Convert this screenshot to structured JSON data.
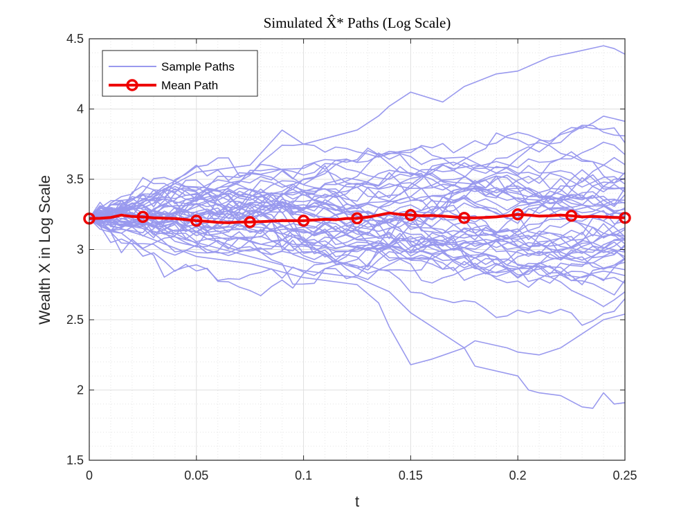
{
  "chart_data": {
    "type": "line",
    "title": "Simulated X̂* Paths (Log Scale)",
    "xlabel": "t",
    "ylabel": "Wealth X in Log Scale",
    "xlim": [
      0,
      0.25
    ],
    "ylim": [
      1.5,
      4.5
    ],
    "xticks": [
      0,
      0.05,
      0.1,
      0.15,
      0.2,
      0.25
    ],
    "xtick_labels": [
      "0",
      "0.05",
      "0.1",
      "0.15",
      "0.2",
      "0.25"
    ],
    "yticks": [
      1.5,
      2,
      2.5,
      3,
      3.5,
      4,
      4.5
    ],
    "ytick_labels": [
      "1.5",
      "2",
      "2.5",
      "3",
      "3.5",
      "4",
      "4.5"
    ],
    "grid": true,
    "minor_grid": true,
    "legend": {
      "position": "top-left",
      "entries": [
        {
          "label": "Sample Paths",
          "color": "#9999ee",
          "marker": "none"
        },
        {
          "label": "Mean Path",
          "color": "#ee0000",
          "marker": "circle"
        }
      ]
    },
    "colors": {
      "sample": "#9999ee",
      "mean": "#ee0000",
      "axes": "#262626",
      "grid": "#dfdfdf"
    },
    "x": [
      0,
      0.005,
      0.01,
      0.015,
      0.02,
      0.025,
      0.03,
      0.035,
      0.04,
      0.045,
      0.05,
      0.055,
      0.06,
      0.065,
      0.07,
      0.075,
      0.08,
      0.085,
      0.09,
      0.095,
      0.1,
      0.105,
      0.11,
      0.115,
      0.12,
      0.125,
      0.13,
      0.135,
      0.14,
      0.145,
      0.15,
      0.155,
      0.16,
      0.165,
      0.17,
      0.175,
      0.18,
      0.185,
      0.19,
      0.195,
      0.2,
      0.205,
      0.21,
      0.215,
      0.22,
      0.225,
      0.23,
      0.235,
      0.24,
      0.245,
      0.25
    ],
    "sample_path_count": 50,
    "sample_path_seed": 7,
    "sample_path_sigma": 0.045,
    "start_value": 3.22,
    "highlighted_paths": [
      {
        "name": "upper-path",
        "x": [
          0,
          0.025,
          0.05,
          0.075,
          0.09,
          0.1,
          0.125,
          0.135,
          0.14,
          0.15,
          0.165,
          0.175,
          0.19,
          0.2,
          0.215,
          0.225,
          0.24,
          0.245,
          0.25
        ],
        "values": [
          3.22,
          3.35,
          3.55,
          3.6,
          3.85,
          3.75,
          3.85,
          3.95,
          4.02,
          4.12,
          4.05,
          4.16,
          4.25,
          4.27,
          4.37,
          4.4,
          4.45,
          4.43,
          4.39
        ]
      },
      {
        "name": "lower-path",
        "x": [
          0,
          0.025,
          0.05,
          0.075,
          0.1,
          0.125,
          0.135,
          0.14,
          0.15,
          0.16,
          0.175,
          0.18,
          0.2,
          0.205,
          0.21,
          0.22,
          0.23,
          0.235,
          0.24,
          0.245,
          0.25
        ],
        "values": [
          3.22,
          3.1,
          2.95,
          2.9,
          2.8,
          2.75,
          2.62,
          2.45,
          2.18,
          2.22,
          2.3,
          2.17,
          2.1,
          2.0,
          1.98,
          1.96,
          1.88,
          1.87,
          1.98,
          1.9,
          1.91
        ]
      },
      {
        "name": "second-lower-path",
        "x": [
          0,
          0.025,
          0.05,
          0.075,
          0.1,
          0.125,
          0.14,
          0.15,
          0.16,
          0.175,
          0.18,
          0.195,
          0.2,
          0.21,
          0.22,
          0.23,
          0.24,
          0.25
        ],
        "values": [
          3.22,
          3.15,
          3.05,
          2.95,
          2.85,
          2.8,
          2.7,
          2.55,
          2.45,
          2.3,
          2.35,
          2.3,
          2.27,
          2.25,
          2.3,
          2.4,
          2.5,
          2.54
        ]
      }
    ],
    "mean_path": {
      "name": "Mean Path",
      "values": [
        3.22,
        3.222,
        3.228,
        3.245,
        3.235,
        3.232,
        3.225,
        3.222,
        3.22,
        3.213,
        3.205,
        3.2,
        3.193,
        3.19,
        3.195,
        3.195,
        3.198,
        3.202,
        3.205,
        3.206,
        3.205,
        3.21,
        3.215,
        3.212,
        3.22,
        3.222,
        3.23,
        3.245,
        3.26,
        3.25,
        3.245,
        3.24,
        3.242,
        3.238,
        3.232,
        3.225,
        3.225,
        3.228,
        3.232,
        3.24,
        3.25,
        3.245,
        3.238,
        3.24,
        3.245,
        3.24,
        3.232,
        3.235,
        3.232,
        3.228,
        3.225
      ],
      "marker_x": [
        0,
        0.025,
        0.05,
        0.075,
        0.1,
        0.125,
        0.15,
        0.175,
        0.2,
        0.225,
        0.25
      ],
      "marker_values": [
        3.22,
        3.232,
        3.205,
        3.195,
        3.205,
        3.222,
        3.245,
        3.225,
        3.25,
        3.24,
        3.225
      ]
    }
  }
}
